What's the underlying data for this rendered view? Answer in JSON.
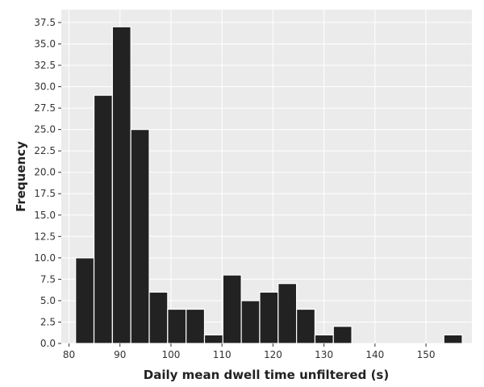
{
  "chart_data": {
    "type": "bar",
    "title": "",
    "xlabel": "Daily mean dwell time unfiltered (s)",
    "ylabel": "Frequency",
    "xlim": [
      78.5,
      159
    ],
    "ylim": [
      0,
      39
    ],
    "x_ticks": [
      80,
      90,
      100,
      110,
      120,
      130,
      140,
      150
    ],
    "y_ticks": [
      0.0,
      2.5,
      5.0,
      7.5,
      10.0,
      12.5,
      15.0,
      17.5,
      20.0,
      22.5,
      25.0,
      27.5,
      30.0,
      32.5,
      35.0,
      37.5
    ],
    "grid": true,
    "bin_width": 3.61,
    "bins": [
      {
        "start": 81.3,
        "value": 10
      },
      {
        "start": 84.91,
        "value": 29
      },
      {
        "start": 88.52,
        "value": 37
      },
      {
        "start": 92.13,
        "value": 25
      },
      {
        "start": 95.74,
        "value": 6
      },
      {
        "start": 99.35,
        "value": 4
      },
      {
        "start": 102.96,
        "value": 4
      },
      {
        "start": 106.57,
        "value": 1
      },
      {
        "start": 110.18,
        "value": 8
      },
      {
        "start": 113.79,
        "value": 5
      },
      {
        "start": 117.4,
        "value": 6
      },
      {
        "start": 121.01,
        "value": 7
      },
      {
        "start": 124.62,
        "value": 4
      },
      {
        "start": 128.23,
        "value": 1
      },
      {
        "start": 131.84,
        "value": 2
      },
      {
        "start": 135.45,
        "value": 0
      },
      {
        "start": 139.06,
        "value": 0
      },
      {
        "start": 142.67,
        "value": 0
      },
      {
        "start": 146.28,
        "value": 0
      },
      {
        "start": 149.89,
        "value": 0
      },
      {
        "start": 153.5,
        "value": 1
      }
    ],
    "colors": {
      "bar": "#222222",
      "bar_edge": "#ffffff",
      "plot_background": "#ebebeb",
      "grid": "#ffffff"
    }
  }
}
